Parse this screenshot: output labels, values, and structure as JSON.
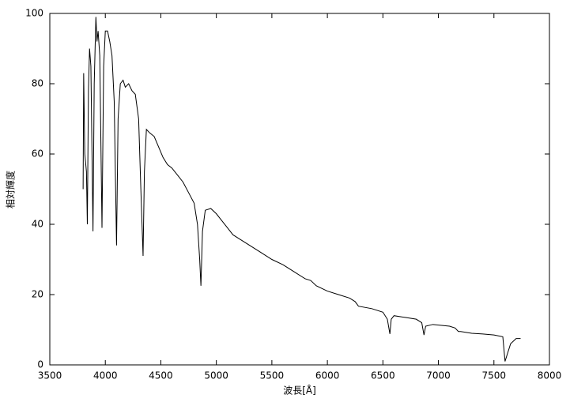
{
  "chart_data": {
    "type": "line",
    "xlabel": "波長[Å]",
    "ylabel": "相対輝度",
    "xlim": [
      3500,
      8000
    ],
    "xticks": [
      3500,
      4000,
      4500,
      5000,
      5500,
      6000,
      6500,
      7000,
      7500,
      8000
    ],
    "ylim": [
      0,
      100
    ],
    "yticks": [
      0,
      20,
      40,
      60,
      80,
      100
    ],
    "grid": false,
    "series": [
      {
        "color": "#000000",
        "x": [
          3800,
          3805,
          3815,
          3830,
          3838,
          3848,
          3858,
          3870,
          3889,
          3900,
          3915,
          3925,
          3935,
          3950,
          3970,
          3985,
          4000,
          4020,
          4040,
          4060,
          4080,
          4101,
          4115,
          4135,
          4160,
          4180,
          4210,
          4240,
          4270,
          4300,
          4320,
          4340,
          4352,
          4370,
          4400,
          4440,
          4480,
          4520,
          4560,
          4600,
          4650,
          4700,
          4750,
          4800,
          4830,
          4850,
          4861,
          4875,
          4900,
          4950,
          5000,
          5050,
          5100,
          5150,
          5200,
          5300,
          5400,
          5500,
          5600,
          5700,
          5800,
          5850,
          5900,
          6000,
          6100,
          6200,
          6250,
          6280,
          6400,
          6500,
          6540,
          6563,
          6575,
          6600,
          6700,
          6800,
          6850,
          6870,
          6885,
          6950,
          7100,
          7150,
          7180,
          7200,
          7300,
          7400,
          7500,
          7580,
          7600,
          7620,
          7650,
          7700,
          7740
        ],
        "values": [
          50,
          83,
          60,
          55,
          40,
          78,
          90,
          85,
          38,
          80,
          99,
          92,
          95,
          88,
          39,
          85,
          95,
          95,
          92,
          88,
          75,
          34,
          70,
          80,
          81,
          79,
          80,
          78,
          77,
          70,
          50,
          31,
          55,
          67,
          66,
          65,
          62,
          59,
          57,
          56,
          54,
          52,
          49,
          46,
          40,
          30,
          22.5,
          38,
          44,
          44.5,
          43,
          41,
          39,
          37,
          36,
          34,
          32,
          30,
          28.5,
          26.5,
          24.5,
          24,
          22.5,
          21,
          20,
          19,
          18,
          16.7,
          16,
          15,
          13,
          8.8,
          13,
          14,
          13.5,
          13,
          12,
          8.5,
          11,
          11.5,
          11,
          10.5,
          9.5,
          9.5,
          9,
          8.8,
          8.5,
          8,
          1,
          3,
          6,
          7.5,
          7.5
        ]
      }
    ]
  }
}
